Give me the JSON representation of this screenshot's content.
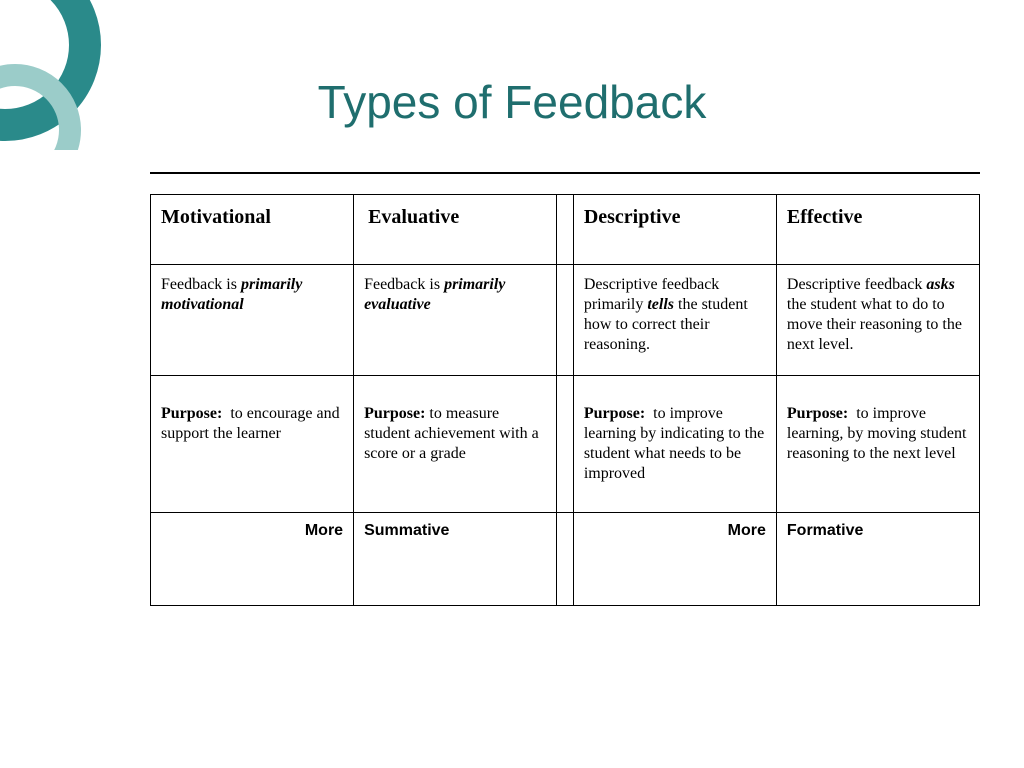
{
  "colors": {
    "title": "#1f6e6e",
    "accent_dark": "#2a8a8a",
    "accent_light": "#9bccc9",
    "hr": "#000000",
    "border": "#000000",
    "bg": "#ffffff"
  },
  "title": "Types of Feedback",
  "table": {
    "headers": [
      "Motivational",
      "Evaluative",
      "Descriptive",
      "Effective"
    ],
    "row1_html": [
      "Feedback is <em><strong>primarily motivational</strong></em>",
      "Feedback is <em><strong>primarily evaluative</strong></em>",
      "Descriptive feedback primarily <em><strong>tells</strong></em> the student how to correct their reasoning.",
      "Descriptive feedback <em><strong>asks</strong></em> the student what to do to move their reasoning to the next level."
    ],
    "row2_html": [
      "<strong>Purpose:</strong>&nbsp; to encourage and support the learner",
      "<strong>Purpose:</strong> to measure student achievement with a score or a grade",
      "<strong>Purpose:</strong>&nbsp; to improve learning by indicating to the student what needs to be improved",
      "<strong>Purpose:</strong>&nbsp; to improve learning, by moving student reasoning to the next level"
    ],
    "row3": [
      "More",
      "Summative",
      "More",
      "Formative"
    ],
    "row3_align": [
      "right",
      "left",
      "right",
      "left"
    ]
  }
}
